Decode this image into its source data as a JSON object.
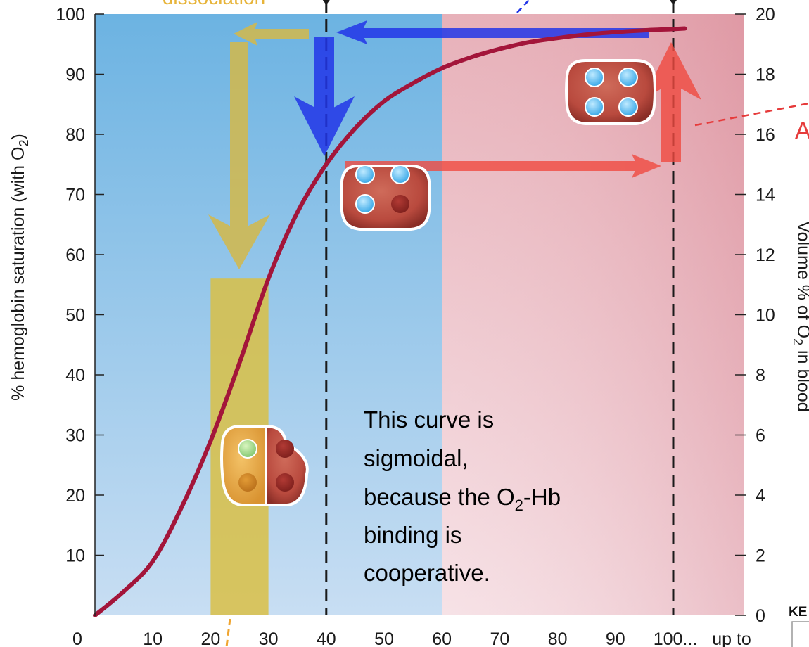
{
  "chart_data": {
    "type": "line",
    "ylabel": "% hemoglobin saturation (with O",
    "ylabel_sub": "2",
    "ylabel_end": ")",
    "right_ylabel": "Volume % of O",
    "right_ylabel_sub": "2",
    "right_ylabel_end": " in blood",
    "x_ticks": [
      "0",
      "10",
      "20",
      "30",
      "40",
      "50",
      "60",
      "70",
      "80",
      "90",
      "100..."
    ],
    "x_tail_label": "up to",
    "y_ticks": [
      "10",
      "20",
      "30",
      "40",
      "50",
      "60",
      "70",
      "80",
      "90",
      "100"
    ],
    "right_y_ticks": [
      "0",
      "2",
      "4",
      "6",
      "8",
      "10",
      "12",
      "14",
      "16",
      "18",
      "20"
    ],
    "xlim": [
      0,
      100
    ],
    "ylim": [
      0,
      100
    ],
    "right_ylim": [
      0,
      20
    ],
    "series": [
      {
        "color": "#a3153a",
        "x": [
          0,
          5,
          10,
          15,
          20,
          25,
          30,
          35,
          40,
          45,
          50,
          55,
          60,
          65,
          70,
          75,
          80,
          85,
          90,
          95,
          100,
          102
        ],
        "y": [
          0,
          4,
          9,
          18,
          29,
          42,
          56,
          67,
          75,
          81,
          85.5,
          88.5,
          91,
          92.8,
          94.2,
          95.3,
          96,
          96.6,
          97,
          97.3,
          97.5,
          97.6
        ]
      }
    ],
    "vertical_lines_x": [
      40,
      100
    ],
    "regions": [
      {
        "x_from": 0,
        "x_to": 60,
        "color": "#6cb3e2"
      },
      {
        "x_from": 60,
        "x_to": 104,
        "color": "#e3a3ad"
      }
    ],
    "highlight_band": {
      "x_from": 20,
      "x_to": 30,
      "y_top": 56,
      "color": "#d9bf45"
    },
    "note_lines": [
      "This curve is",
      "sigmoidal,",
      "because the O",
      "binding is",
      "cooperative."
    ],
    "note_sub": "2",
    "note_line3_end": "-Hb",
    "top_label": "dissociation",
    "right_edge_label": "A",
    "key_label": "KE",
    "colors": {
      "yellow_arrow": "#d4b94a",
      "blue_arrow": "#2236e8",
      "red_arrow": "#f04a40",
      "curve": "#a3153a"
    }
  }
}
